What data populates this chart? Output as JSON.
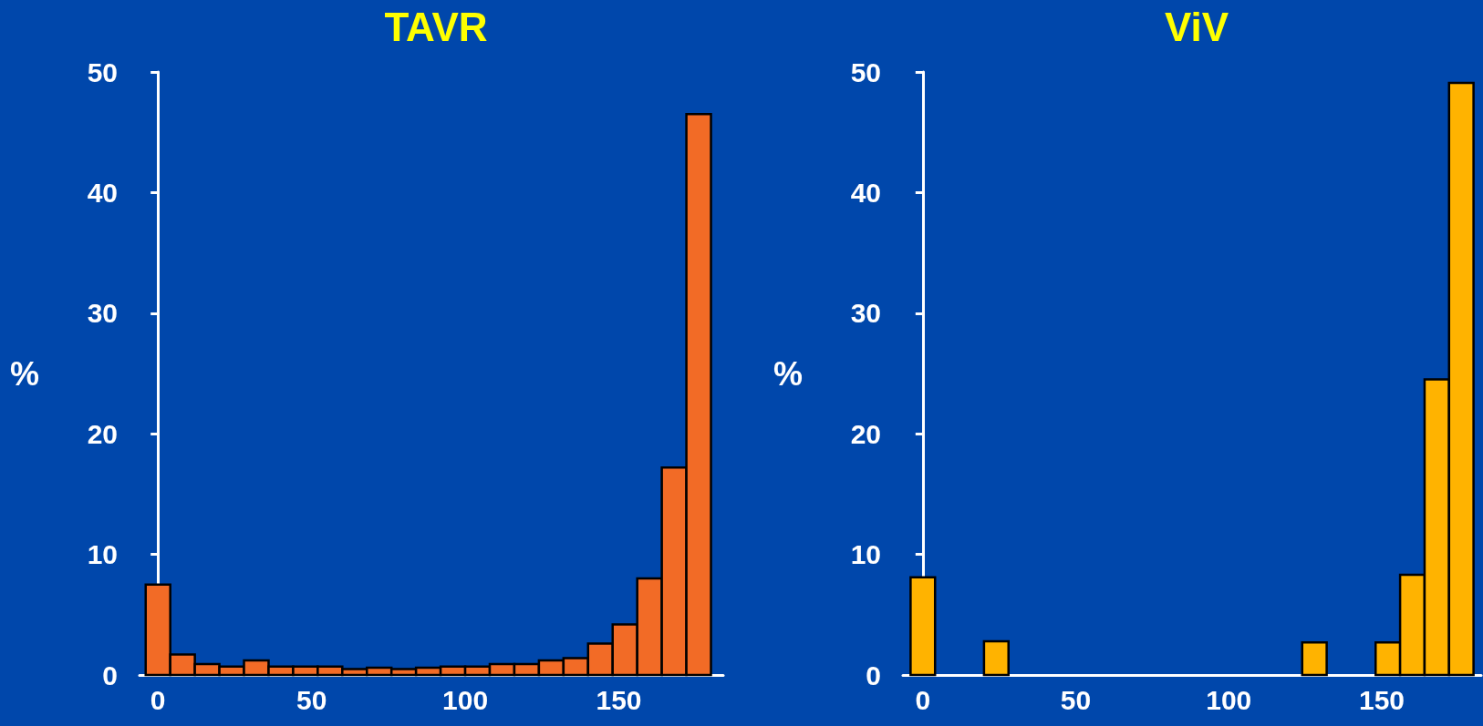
{
  "chart_data": [
    {
      "type": "histogram",
      "title": "TAVR",
      "ylabel": "%",
      "color": "#f26b26",
      "bins": [
        -4,
        4,
        12,
        20,
        28,
        36,
        44,
        52,
        60,
        68,
        76,
        84,
        92,
        100,
        108,
        116,
        124,
        132,
        140,
        148,
        156,
        164,
        172,
        180
      ],
      "values": [
        7.5,
        1.7,
        0.9,
        0.7,
        1.2,
        0.7,
        0.7,
        0.7,
        0.5,
        0.6,
        0.5,
        0.6,
        0.7,
        0.7,
        0.9,
        0.9,
        1.2,
        1.4,
        2.6,
        4.2,
        8.0,
        17.2,
        46.5
      ],
      "xlim": [
        -6,
        184
      ],
      "xticks": [
        0,
        50,
        100,
        150
      ],
      "ylim": [
        0,
        50
      ],
      "yticks": [
        0,
        10,
        20,
        30,
        40,
        50
      ],
      "grid": false
    },
    {
      "type": "histogram",
      "title": "ViV",
      "ylabel": "%",
      "color": "#ffb300",
      "bins": [
        -4,
        4,
        12,
        20,
        28,
        36,
        44,
        52,
        60,
        68,
        76,
        84,
        92,
        100,
        108,
        116,
        124,
        132,
        140,
        148,
        156,
        164,
        172,
        180
      ],
      "values": [
        8.1,
        0,
        0,
        2.8,
        0,
        0,
        0,
        0,
        0,
        0,
        0,
        0,
        0,
        0,
        0,
        0,
        2.7,
        0,
        0,
        2.7,
        8.3,
        24.5,
        49.1
      ],
      "xlim": [
        -6.5,
        182.5
      ],
      "xticks": [
        0,
        50,
        100,
        150
      ],
      "ylim": [
        0,
        50
      ],
      "yticks": [
        0,
        10,
        20,
        30,
        40,
        50
      ],
      "grid": false
    }
  ]
}
